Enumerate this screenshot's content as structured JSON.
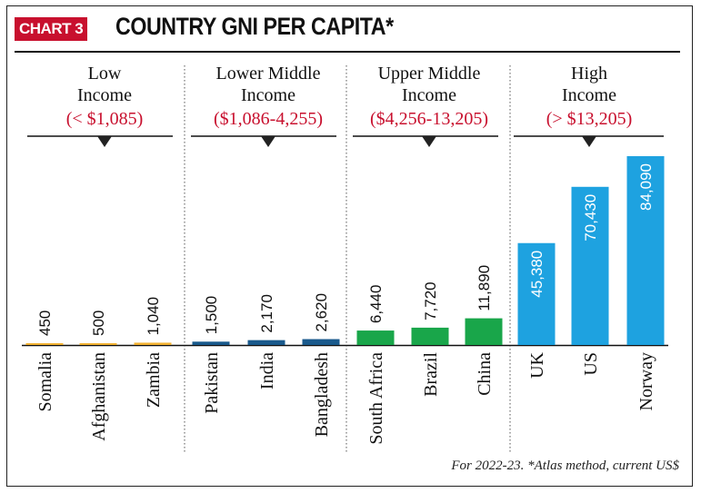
{
  "badge": "CHART 3",
  "title": "COUNTRY GNI PER CAPITA*",
  "footnote": "For 2022-23. *Atlas method, current US$",
  "colors": {
    "low": "#f2b233",
    "lower_middle": "#1a5a8c",
    "upper_middle": "#19a64a",
    "high": "#1ea2e0",
    "range_text": "#c8102e"
  },
  "chart_data": {
    "type": "bar",
    "title": "COUNTRY GNI PER CAPITA*",
    "categories": [
      "Somalia",
      "Afghanistan",
      "Zambia",
      "Pakistan",
      "India",
      "Bangladesh",
      "South Africa",
      "Brazil",
      "China",
      "UK",
      "US",
      "Norway"
    ],
    "values": [
      450,
      500,
      1040,
      1500,
      2170,
      2620,
      6440,
      7720,
      11890,
      45380,
      70430,
      84090
    ],
    "value_labels": [
      "450",
      "500",
      "1,040",
      "1,500",
      "2,170",
      "2,620",
      "6,440",
      "7,720",
      "11,890",
      "45,380",
      "70,430",
      "84,090"
    ],
    "groups": [
      {
        "name_lines": [
          "Low",
          "Income"
        ],
        "range": "(< $1,085)",
        "color_key": "low",
        "members": [
          0,
          1,
          2
        ]
      },
      {
        "name_lines": [
          "Lower Middle",
          "Income"
        ],
        "range": "($1,086-4,255)",
        "color_key": "lower_middle",
        "members": [
          3,
          4,
          5
        ]
      },
      {
        "name_lines": [
          "Upper Middle",
          "Income"
        ],
        "range": "($4,256-13,205)",
        "color_key": "upper_middle",
        "members": [
          6,
          7,
          8
        ]
      },
      {
        "name_lines": [
          "High",
          "Income"
        ],
        "range": "(> $13,205)",
        "color_key": "high",
        "members": [
          9,
          10,
          11
        ]
      }
    ],
    "xlabel": "",
    "ylabel": "",
    "ylim": [
      0,
      84090
    ],
    "grid": false,
    "legend": "none"
  }
}
